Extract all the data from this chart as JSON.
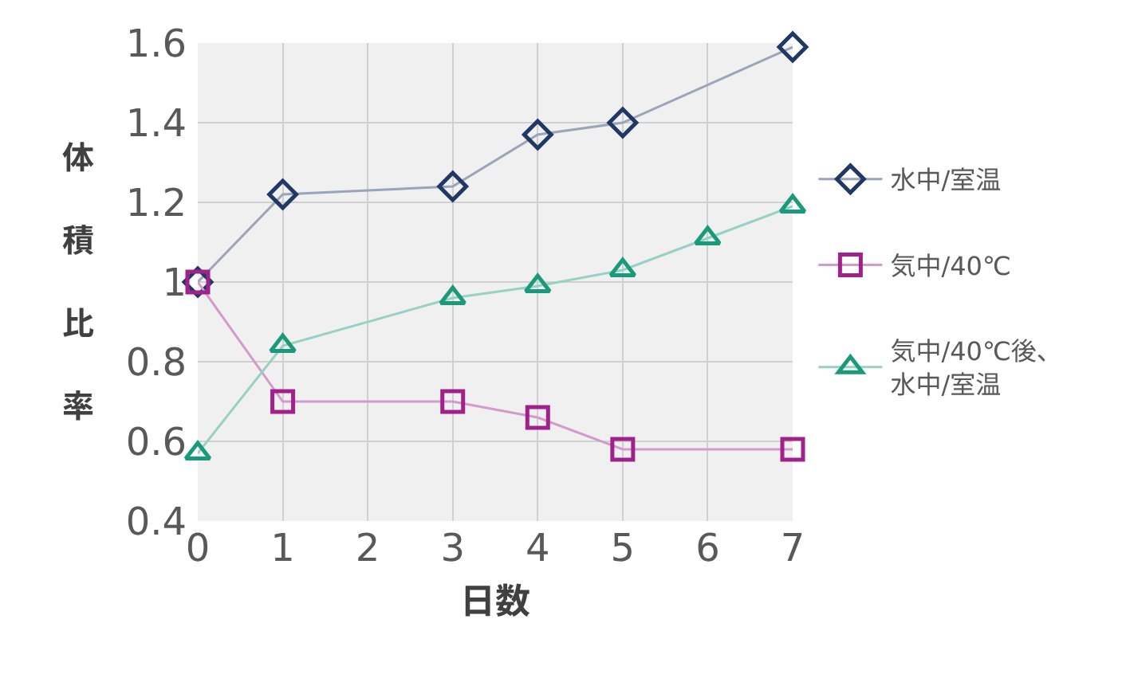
{
  "chart_data": {
    "type": "line",
    "xlabel": "日数",
    "ylabel": "体積比率",
    "x": [
      0,
      1,
      3,
      4,
      5,
      7
    ],
    "xlim": [
      0,
      7
    ],
    "xticks": [
      0,
      1,
      2,
      3,
      4,
      5,
      6,
      7
    ],
    "ylim": [
      0.4,
      1.6
    ],
    "yticks": [
      0.4,
      0.6,
      0.8,
      1,
      1.2,
      1.4,
      1.6
    ],
    "grid": true,
    "legend": "right",
    "series": [
      {
        "name": "水中/室温",
        "color": "#1f3864",
        "marker": "diamond",
        "values": [
          1.0,
          1.22,
          1.24,
          1.37,
          1.4,
          1.59
        ]
      },
      {
        "name": "気中/40℃",
        "color": "#a0208c",
        "marker": "square",
        "values": [
          1.0,
          0.7,
          0.7,
          0.66,
          0.58,
          0.58
        ]
      },
      {
        "name": "気中/40℃後、水中/室温",
        "color": "#1a9a7a",
        "marker": "triangle",
        "x": [
          0,
          1,
          3,
          4,
          5,
          6,
          7
        ],
        "values": [
          0.57,
          0.84,
          0.96,
          0.99,
          1.03,
          1.11,
          1.19
        ]
      }
    ]
  }
}
